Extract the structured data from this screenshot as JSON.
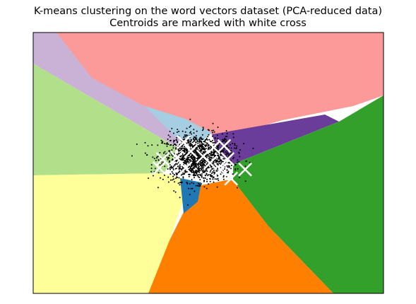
{
  "chart_data": {
    "type": "scatter",
    "title": "K-means clustering on the word vectors dataset (PCA-reduced data)",
    "subtitle": "Centroids are marked with white cross",
    "xlabel": "",
    "ylabel": "",
    "xlim": [
      -1,
      1
    ],
    "ylim": [
      -1,
      1
    ],
    "xticks": [],
    "yticks": [],
    "grid": false,
    "legend": "none",
    "background": "decision-region",
    "region_colors": {
      "red": "#fb9a99",
      "lavender": "#cab2d6",
      "light_green": "#b2df8a",
      "light_blue": "#a6cee3",
      "purple": "#6a3d9a",
      "green": "#33a02c",
      "yellow": "#ffff99",
      "orange": "#ff7f00",
      "blue": "#1f78b4"
    },
    "point_color": "#000000",
    "centroid_marker": "x",
    "centroid_color": "#ffffff",
    "centroids": [
      {
        "x": -0.14,
        "y": 0.16
      },
      {
        "x": -0.1,
        "y": 0.09
      },
      {
        "x": -0.18,
        "y": 0.04
      },
      {
        "x": -0.03,
        "y": 0.05
      },
      {
        "x": 0.03,
        "y": 0.12
      },
      {
        "x": 0.09,
        "y": 0.13
      },
      {
        "x": -0.26,
        "y": 0.03
      },
      {
        "x": -0.28,
        "y": -0.04
      },
      {
        "x": -0.13,
        "y": -0.04
      },
      {
        "x": 0.01,
        "y": 0.0
      },
      {
        "x": 0.07,
        "y": -0.05
      },
      {
        "x": 0.11,
        "y": 0.03
      },
      {
        "x": 0.21,
        "y": -0.05
      },
      {
        "x": 0.13,
        "y": -0.12
      }
    ],
    "points_cluster_center": {
      "x": -0.06,
      "y": 0.04
    },
    "points_count_approx": 1500
  }
}
